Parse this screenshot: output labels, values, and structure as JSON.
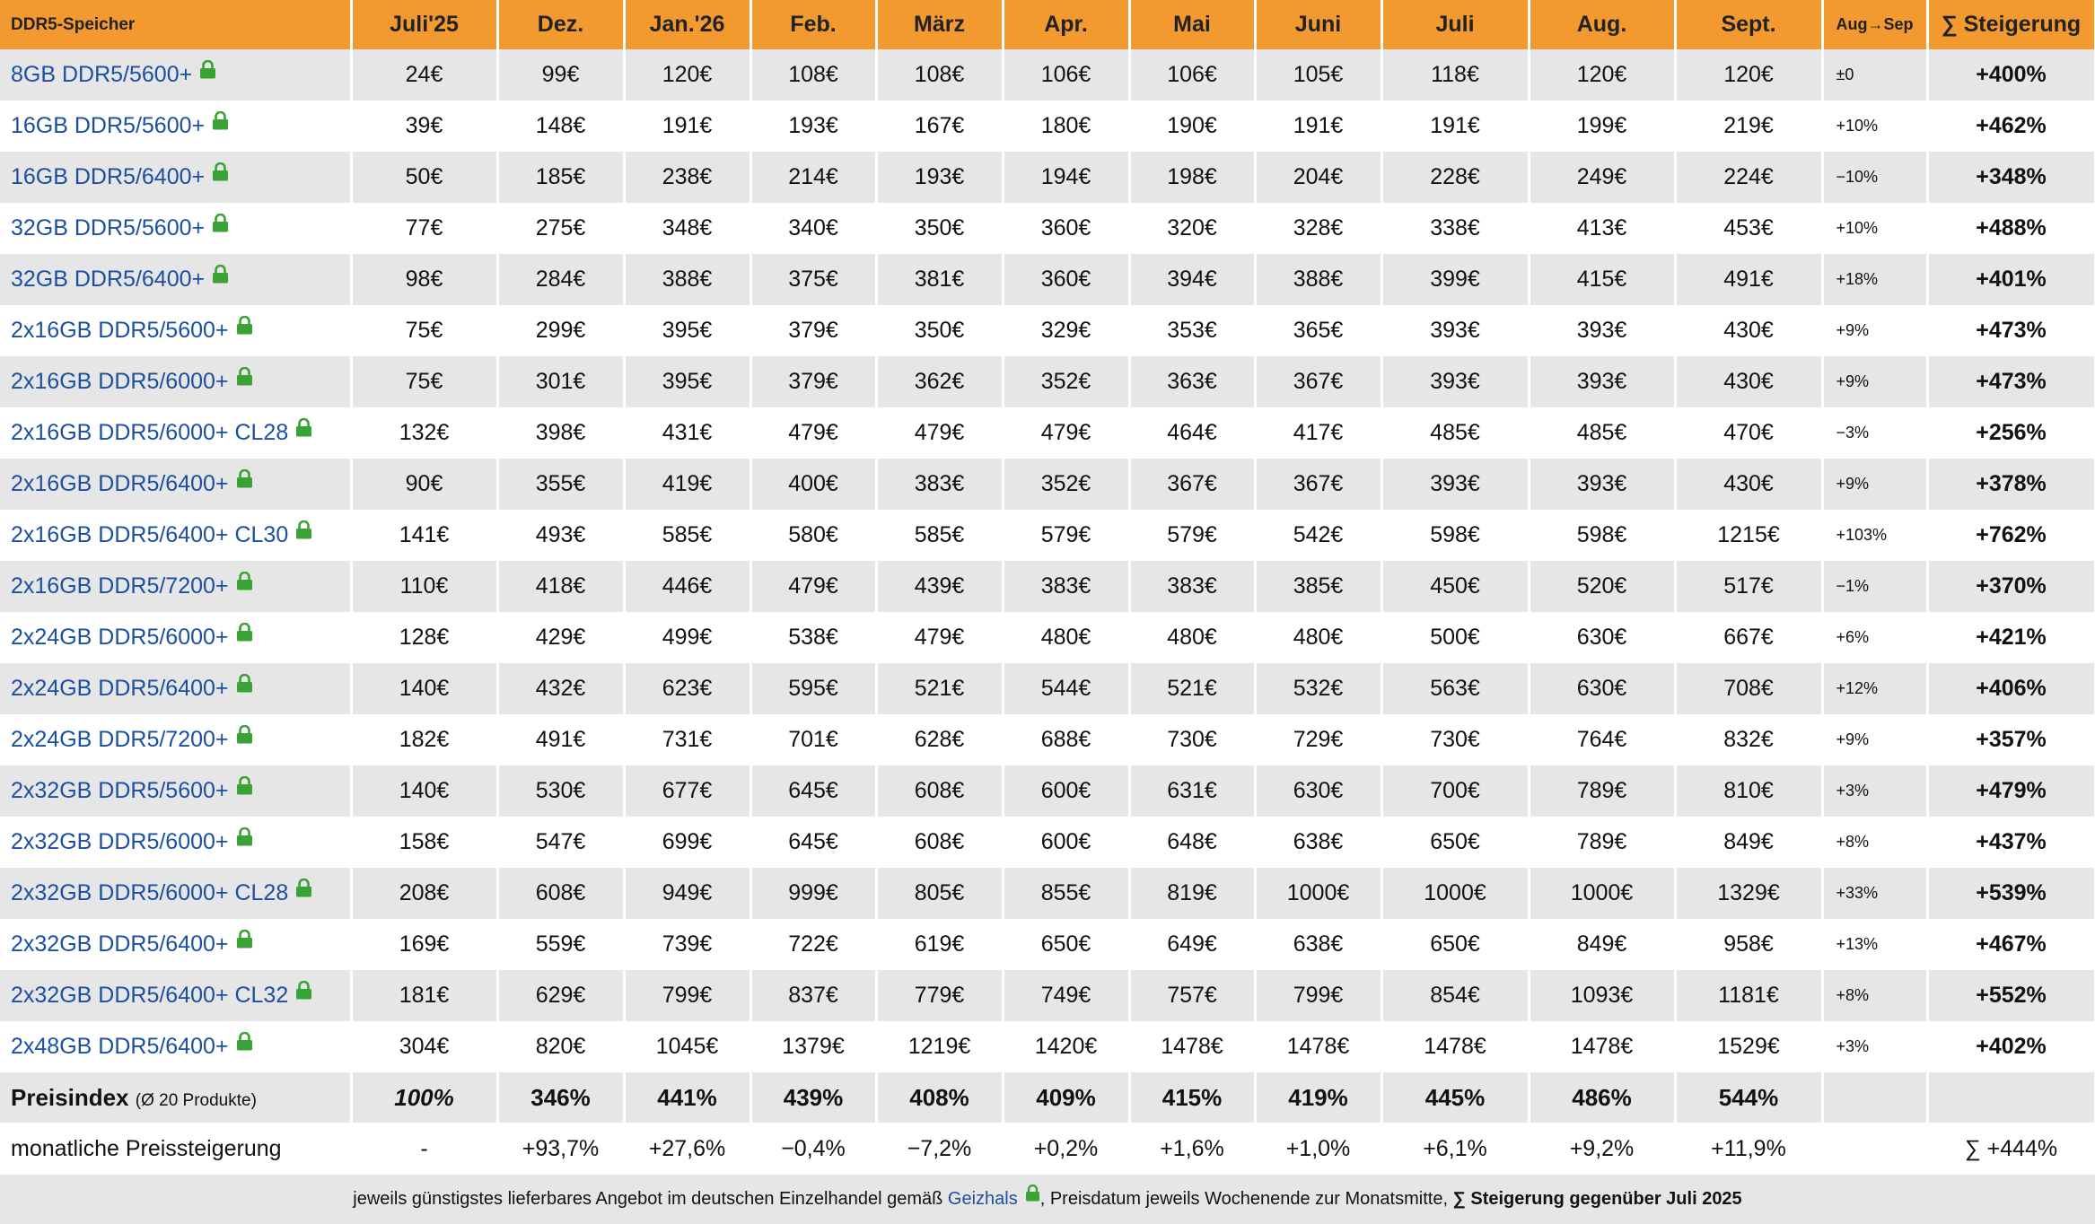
{
  "header": {
    "title": "DDR5-Speicher",
    "months": [
      "Juli'25",
      "Dez.",
      "Jan.'26",
      "Feb.",
      "März",
      "Apr.",
      "Mai",
      "Juni",
      "Juli",
      "Aug.",
      "Sept."
    ],
    "delta_label": "Aug→Sep",
    "sum_label": "∑ Steigerung"
  },
  "colors": {
    "header_bg": "#f29a30",
    "link": "#1a4fa3",
    "lock": "#3aa335",
    "row_alt": "#e6e6e6"
  },
  "lock_icon": "lock-icon",
  "products": [
    {
      "name": "8GB DDR5/5600+",
      "prices": [
        "24€",
        "99€",
        "120€",
        "108€",
        "108€",
        "106€",
        "106€",
        "105€",
        "118€",
        "120€",
        "120€"
      ],
      "delta": "±0",
      "total": "+400%"
    },
    {
      "name": "16GB DDR5/5600+",
      "prices": [
        "39€",
        "148€",
        "191€",
        "193€",
        "167€",
        "180€",
        "190€",
        "191€",
        "191€",
        "199€",
        "219€"
      ],
      "delta": "+10%",
      "total": "+462%"
    },
    {
      "name": "16GB DDR5/6400+",
      "prices": [
        "50€",
        "185€",
        "238€",
        "214€",
        "193€",
        "194€",
        "198€",
        "204€",
        "228€",
        "249€",
        "224€"
      ],
      "delta": "−10%",
      "total": "+348%"
    },
    {
      "name": "32GB DDR5/5600+",
      "prices": [
        "77€",
        "275€",
        "348€",
        "340€",
        "350€",
        "360€",
        "320€",
        "328€",
        "338€",
        "413€",
        "453€"
      ],
      "delta": "+10%",
      "total": "+488%"
    },
    {
      "name": "32GB DDR5/6400+",
      "prices": [
        "98€",
        "284€",
        "388€",
        "375€",
        "381€",
        "360€",
        "394€",
        "388€",
        "399€",
        "415€",
        "491€"
      ],
      "delta": "+18%",
      "total": "+401%"
    },
    {
      "name": "2x16GB DDR5/5600+",
      "prices": [
        "75€",
        "299€",
        "395€",
        "379€",
        "350€",
        "329€",
        "353€",
        "365€",
        "393€",
        "393€",
        "430€"
      ],
      "delta": "+9%",
      "total": "+473%"
    },
    {
      "name": "2x16GB DDR5/6000+",
      "prices": [
        "75€",
        "301€",
        "395€",
        "379€",
        "362€",
        "352€",
        "363€",
        "367€",
        "393€",
        "393€",
        "430€"
      ],
      "delta": "+9%",
      "total": "+473%"
    },
    {
      "name": "2x16GB DDR5/6000+ CL28",
      "prices": [
        "132€",
        "398€",
        "431€",
        "479€",
        "479€",
        "479€",
        "464€",
        "417€",
        "485€",
        "485€",
        "470€"
      ],
      "delta": "−3%",
      "total": "+256%"
    },
    {
      "name": "2x16GB DDR5/6400+",
      "prices": [
        "90€",
        "355€",
        "419€",
        "400€",
        "383€",
        "352€",
        "367€",
        "367€",
        "393€",
        "393€",
        "430€"
      ],
      "delta": "+9%",
      "total": "+378%"
    },
    {
      "name": "2x16GB DDR5/6400+ CL30",
      "prices": [
        "141€",
        "493€",
        "585€",
        "580€",
        "585€",
        "579€",
        "579€",
        "542€",
        "598€",
        "598€",
        "1215€"
      ],
      "delta": "+103%",
      "total": "+762%"
    },
    {
      "name": "2x16GB DDR5/7200+",
      "prices": [
        "110€",
        "418€",
        "446€",
        "479€",
        "439€",
        "383€",
        "383€",
        "385€",
        "450€",
        "520€",
        "517€"
      ],
      "delta": "−1%",
      "total": "+370%"
    },
    {
      "name": "2x24GB DDR5/6000+",
      "prices": [
        "128€",
        "429€",
        "499€",
        "538€",
        "479€",
        "480€",
        "480€",
        "480€",
        "500€",
        "630€",
        "667€"
      ],
      "delta": "+6%",
      "total": "+421%"
    },
    {
      "name": "2x24GB DDR5/6400+",
      "prices": [
        "140€",
        "432€",
        "623€",
        "595€",
        "521€",
        "544€",
        "521€",
        "532€",
        "563€",
        "630€",
        "708€"
      ],
      "delta": "+12%",
      "total": "+406%"
    },
    {
      "name": "2x24GB DDR5/7200+",
      "prices": [
        "182€",
        "491€",
        "731€",
        "701€",
        "628€",
        "688€",
        "730€",
        "729€",
        "730€",
        "764€",
        "832€"
      ],
      "delta": "+9%",
      "total": "+357%"
    },
    {
      "name": "2x32GB DDR5/5600+",
      "prices": [
        "140€",
        "530€",
        "677€",
        "645€",
        "608€",
        "600€",
        "631€",
        "630€",
        "700€",
        "789€",
        "810€"
      ],
      "delta": "+3%",
      "total": "+479%"
    },
    {
      "name": "2x32GB DDR5/6000+",
      "prices": [
        "158€",
        "547€",
        "699€",
        "645€",
        "608€",
        "600€",
        "648€",
        "638€",
        "650€",
        "789€",
        "849€"
      ],
      "delta": "+8%",
      "total": "+437%"
    },
    {
      "name": "2x32GB DDR5/6000+ CL28",
      "prices": [
        "208€",
        "608€",
        "949€",
        "999€",
        "805€",
        "855€",
        "819€",
        "1000€",
        "1000€",
        "1000€",
        "1329€"
      ],
      "delta": "+33%",
      "total": "+539%"
    },
    {
      "name": "2x32GB DDR5/6400+",
      "prices": [
        "169€",
        "559€",
        "739€",
        "722€",
        "619€",
        "650€",
        "649€",
        "638€",
        "650€",
        "849€",
        "958€"
      ],
      "delta": "+13%",
      "total": "+467%"
    },
    {
      "name": "2x32GB DDR5/6400+ CL32",
      "prices": [
        "181€",
        "629€",
        "799€",
        "837€",
        "779€",
        "749€",
        "757€",
        "799€",
        "854€",
        "1093€",
        "1181€"
      ],
      "delta": "+8%",
      "total": "+552%"
    },
    {
      "name": "2x48GB DDR5/6400+",
      "prices": [
        "304€",
        "820€",
        "1045€",
        "1379€",
        "1219€",
        "1420€",
        "1478€",
        "1478€",
        "1478€",
        "1478€",
        "1529€"
      ],
      "delta": "+3%",
      "total": "+402%"
    }
  ],
  "index_row": {
    "label": "Preisindex",
    "sublabel": "(Ø 20 Produkte)",
    "values": [
      "100%",
      "346%",
      "441%",
      "439%",
      "408%",
      "409%",
      "415%",
      "419%",
      "445%",
      "486%",
      "544%"
    ],
    "delta": "",
    "total": ""
  },
  "monthly_row": {
    "label": "monatliche Preissteigerung",
    "values": [
      "-",
      "+93,7%",
      "+27,6%",
      "−0,4%",
      "−7,2%",
      "+0,2%",
      "+1,6%",
      "+1,0%",
      "+6,1%",
      "+9,2%",
      "+11,9%"
    ],
    "delta": "",
    "total": "∑ +444%"
  },
  "footer": {
    "text_before": "jeweils günstigstes lieferbares Angebot im deutschen Einzelhandel gemäß ",
    "link": "Geizhals",
    "text_after": ", Preisdatum jeweils Wochenende zur Monatsmitte, ",
    "bold": "∑ Steigerung gegenüber Juli 2025"
  }
}
